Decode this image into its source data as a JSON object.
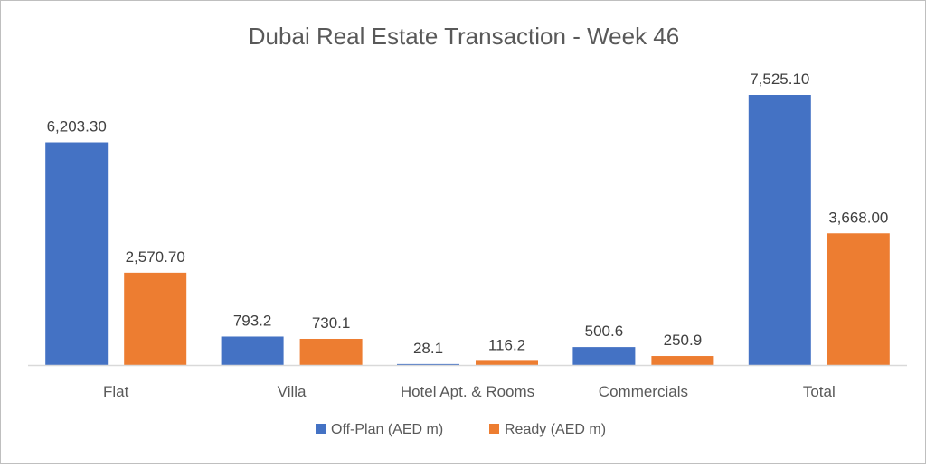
{
  "chart_data": {
    "type": "bar",
    "title": "Dubai Real Estate Transaction - Week 46",
    "categories": [
      "Flat",
      "Villa",
      "Hotel Apt. & Rooms",
      "Commercials",
      "Total"
    ],
    "series": [
      {
        "name": "Off-Plan (AED m)",
        "values": [
          6203.3,
          793.2,
          28.1,
          500.6,
          7525.1
        ],
        "labels": [
          "6,203.30",
          "793.2",
          "28.1",
          "500.6",
          "7,525.10"
        ],
        "color": "#4472C4"
      },
      {
        "name": "Ready (AED m)",
        "values": [
          2570.7,
          730.1,
          116.2,
          250.9,
          3668.0
        ],
        "labels": [
          "2,570.70",
          "730.1",
          "116.2",
          "250.9",
          "3,668.00"
        ],
        "color": "#ED7D31"
      }
    ],
    "xlabel": "",
    "ylabel": "",
    "ylim": [
      0,
      8000
    ],
    "grid": false,
    "legend": "bottom",
    "axis_color": "#d9d9d9"
  }
}
